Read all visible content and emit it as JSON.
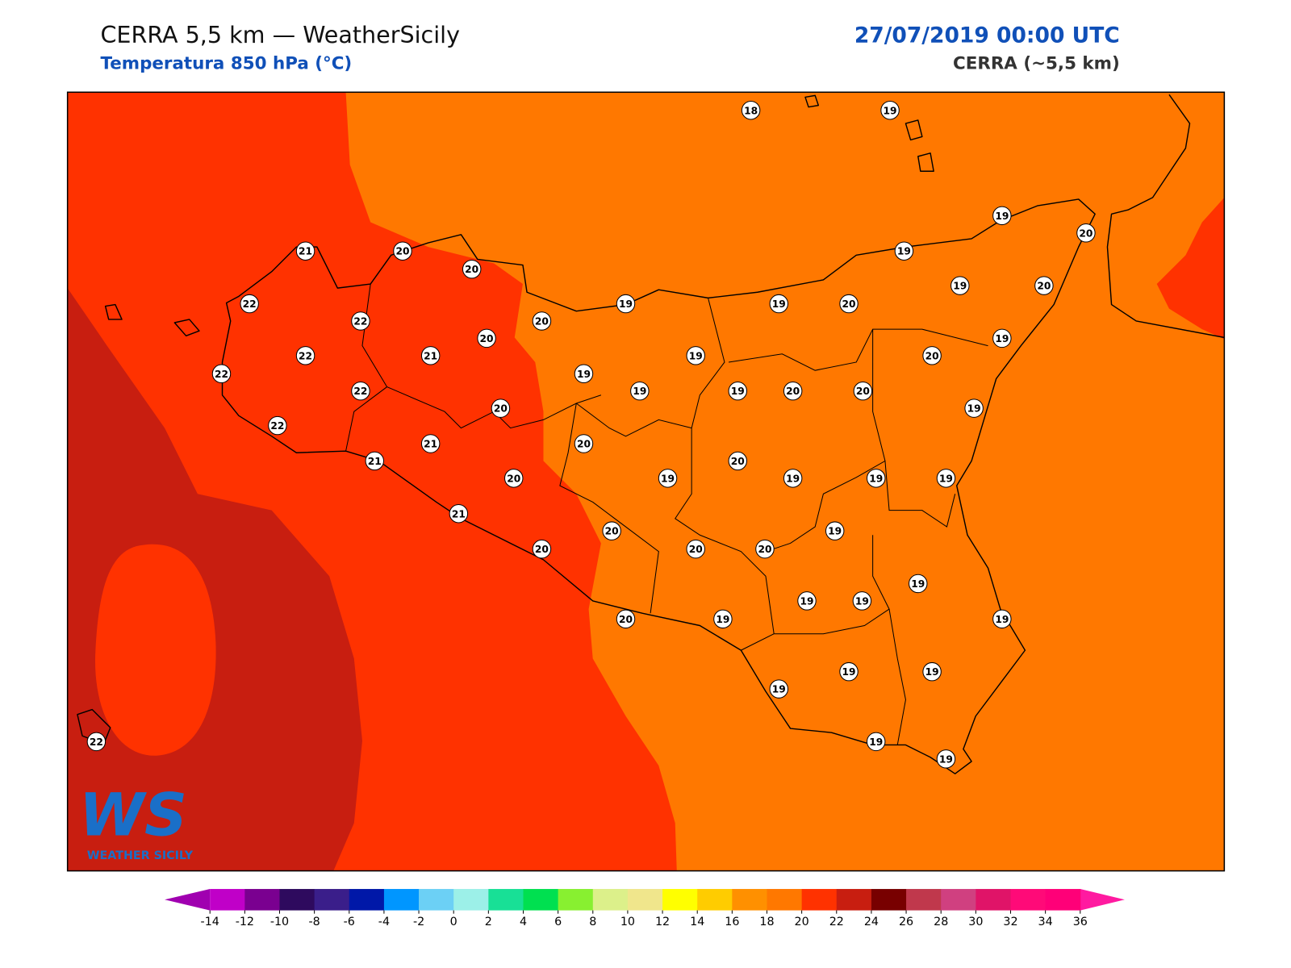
{
  "header": {
    "title": "CERRA 5,5 km — WeatherSicily",
    "subtitle": "Temperatura 850 hPa (°C)",
    "valid_time": "27/07/2019 00:00 UTC",
    "model": "CERRA (~5,5 km)"
  },
  "stations": [
    18,
    19,
    19,
    20,
    21,
    20,
    20,
    19,
    22,
    19,
    19,
    20,
    19,
    20,
    22,
    20,
    20,
    19,
    22,
    21,
    19,
    20,
    22,
    19,
    22,
    19,
    19,
    20,
    20,
    20,
    19,
    22,
    21,
    20,
    20,
    21,
    20,
    19,
    19,
    19,
    19,
    19,
    21,
    20,
    20,
    20,
    20,
    19,
    19,
    19,
    20,
    19,
    19,
    19,
    19,
    19,
    19,
    19,
    22
  ],
  "logo": {
    "mark": "WS",
    "text": "WEATHER SICILY"
  },
  "colorbar": {
    "ticks": [
      -14,
      -12,
      -10,
      -8,
      -6,
      -4,
      -2,
      0,
      2,
      4,
      6,
      8,
      10,
      12,
      14,
      16,
      18,
      20,
      22,
      24,
      26,
      28,
      30,
      32,
      34,
      36
    ],
    "colors": [
      "#c000c8",
      "#7a0090",
      "#2e0a5e",
      "#3a1e8a",
      "#0018a8",
      "#0096ff",
      "#6cd0f5",
      "#9cf0e8",
      "#18e096",
      "#00e050",
      "#88f030",
      "#dcf08a",
      "#f0e68c",
      "#ffff00",
      "#ffcc00",
      "#ff9000",
      "#ff7800",
      "#ff3200",
      "#c81e10",
      "#780000",
      "#c0384c",
      "#d04080",
      "#e01468",
      "#ff0a78",
      "#ff0078"
    ],
    "under_color": "#a000b0",
    "over_color": "#ff1aa0"
  }
}
